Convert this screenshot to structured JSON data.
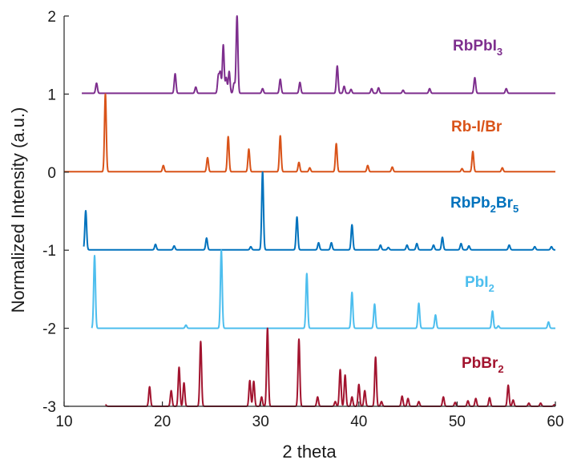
{
  "chart_data": {
    "type": "line",
    "title": "",
    "xlabel": "2 theta",
    "ylabel": "Normalized Intensity (a.u.)",
    "xlim": [
      10,
      60
    ],
    "ylim": [
      -3,
      2
    ],
    "xticks": [
      "10",
      "20",
      "30",
      "40",
      "50",
      "60"
    ],
    "yticks": [
      "-3",
      "-2",
      "-1",
      "0",
      "1",
      "2"
    ],
    "grid": false,
    "legend": "inline labels at the right of each trace",
    "series": [
      {
        "label_main": "RbPbI",
        "label_sub": "3",
        "label_tail": "",
        "color": "#7E2F8E",
        "offset": 1,
        "x_range": [
          11.8,
          60
        ],
        "baseline": 0.01,
        "peaks": [
          [
            13.3,
            0.13
          ],
          [
            21.3,
            0.25
          ],
          [
            23.4,
            0.08
          ],
          [
            25.7,
            0.22
          ],
          [
            25.9,
            0.26
          ],
          [
            26.2,
            0.62
          ],
          [
            26.5,
            0.2
          ],
          [
            26.8,
            0.28
          ],
          [
            27.3,
            0.13
          ],
          [
            27.6,
            1.0
          ],
          [
            30.2,
            0.06
          ],
          [
            32.0,
            0.18
          ],
          [
            34.0,
            0.14
          ],
          [
            37.8,
            0.35
          ],
          [
            38.5,
            0.09
          ],
          [
            39.2,
            0.05
          ],
          [
            41.3,
            0.06
          ],
          [
            42.0,
            0.07
          ],
          [
            44.5,
            0.04
          ],
          [
            47.2,
            0.06
          ],
          [
            51.8,
            0.2
          ],
          [
            55.0,
            0.06
          ]
        ]
      },
      {
        "label_main": "Rb-I/Br",
        "label_sub": "",
        "label_tail": "",
        "color": "#D95319",
        "offset": 0,
        "x_range": [
          10,
          60
        ],
        "baseline": 0.005,
        "peaks": [
          [
            14.2,
            1.0
          ],
          [
            20.1,
            0.08
          ],
          [
            24.6,
            0.18
          ],
          [
            26.7,
            0.45
          ],
          [
            28.8,
            0.29
          ],
          [
            32.0,
            0.46
          ],
          [
            33.9,
            0.12
          ],
          [
            35.0,
            0.05
          ],
          [
            37.7,
            0.36
          ],
          [
            40.9,
            0.08
          ],
          [
            43.4,
            0.06
          ],
          [
            50.5,
            0.04
          ],
          [
            51.6,
            0.26
          ],
          [
            54.6,
            0.05
          ]
        ]
      },
      {
        "label_main": "RbPb",
        "label_sub": "2",
        "label_tail": "Br",
        "label_sub2": "5",
        "color": "#0072BD",
        "offset": -1,
        "x_range": [
          12,
          60
        ],
        "baseline": 0.005,
        "peaks": [
          [
            12.2,
            0.5
          ],
          [
            19.3,
            0.07
          ],
          [
            21.2,
            0.05
          ],
          [
            24.5,
            0.15
          ],
          [
            29.0,
            0.04
          ],
          [
            30.2,
            1.0
          ],
          [
            33.7,
            0.42
          ],
          [
            35.9,
            0.09
          ],
          [
            37.2,
            0.09
          ],
          [
            39.3,
            0.32
          ],
          [
            42.2,
            0.06
          ],
          [
            43.0,
            0.03
          ],
          [
            44.9,
            0.06
          ],
          [
            45.9,
            0.08
          ],
          [
            47.6,
            0.06
          ],
          [
            48.5,
            0.16
          ],
          [
            50.4,
            0.08
          ],
          [
            51.2,
            0.05
          ],
          [
            55.3,
            0.06
          ],
          [
            57.9,
            0.04
          ],
          [
            59.6,
            0.04
          ]
        ]
      },
      {
        "label_main": "PbI",
        "label_sub": "2",
        "label_tail": "",
        "color": "#4DBEEE",
        "offset": -2,
        "x_range": [
          12.8,
          60
        ],
        "baseline": 0.0,
        "peaks": [
          [
            13.1,
            0.93
          ],
          [
            22.4,
            0.04
          ],
          [
            26.0,
            1.0
          ],
          [
            34.7,
            0.7
          ],
          [
            39.3,
            0.46
          ],
          [
            41.6,
            0.31
          ],
          [
            46.1,
            0.32
          ],
          [
            47.8,
            0.17
          ],
          [
            53.6,
            0.22
          ],
          [
            54.2,
            0.03
          ],
          [
            59.3,
            0.08
          ]
        ]
      },
      {
        "label_main": "PbBr",
        "label_sub": "2",
        "label_tail": "",
        "color": "#A2142F",
        "offset": -3,
        "x_range": [
          14.2,
          60
        ],
        "baseline": 0.0,
        "peaks": [
          [
            14.2,
            0.02
          ],
          [
            18.7,
            0.25
          ],
          [
            20.9,
            0.2
          ],
          [
            21.7,
            0.5
          ],
          [
            22.2,
            0.3
          ],
          [
            23.9,
            0.83
          ],
          [
            28.9,
            0.33
          ],
          [
            29.3,
            0.32
          ],
          [
            30.1,
            0.12
          ],
          [
            30.7,
            1.0
          ],
          [
            33.9,
            0.86
          ],
          [
            35.8,
            0.12
          ],
          [
            37.6,
            0.06
          ],
          [
            38.1,
            0.47
          ],
          [
            38.6,
            0.4
          ],
          [
            39.3,
            0.12
          ],
          [
            40.0,
            0.28
          ],
          [
            40.6,
            0.2
          ],
          [
            41.7,
            0.63
          ],
          [
            42.3,
            0.06
          ],
          [
            44.4,
            0.13
          ],
          [
            45.0,
            0.1
          ],
          [
            46.1,
            0.06
          ],
          [
            48.6,
            0.12
          ],
          [
            49.8,
            0.05
          ],
          [
            51.1,
            0.07
          ],
          [
            51.9,
            0.1
          ],
          [
            53.3,
            0.11
          ],
          [
            55.2,
            0.27
          ],
          [
            55.7,
            0.08
          ],
          [
            57.3,
            0.04
          ],
          [
            58.5,
            0.04
          ],
          [
            59.9,
            0.02
          ]
        ]
      }
    ]
  }
}
